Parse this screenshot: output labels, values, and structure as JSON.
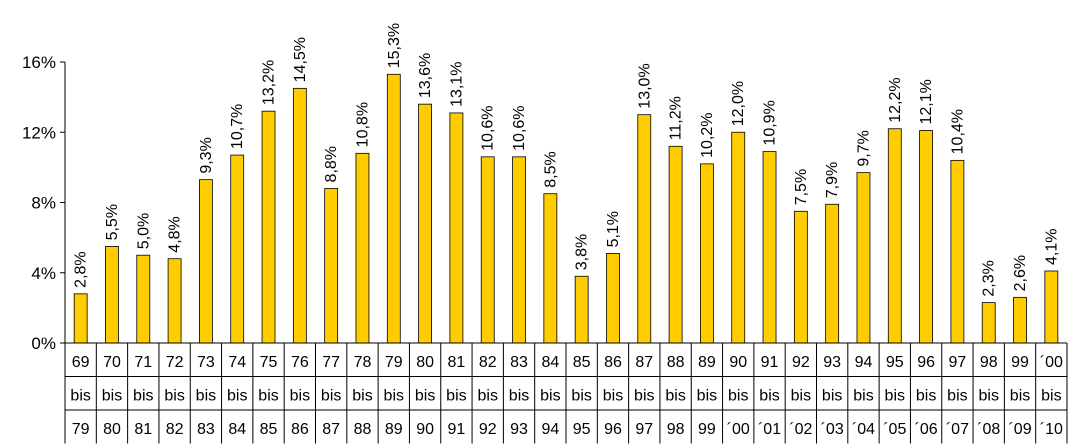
{
  "chart_data": {
    "type": "bar",
    "title": "",
    "xlabel": "",
    "ylabel": "",
    "ylim": [
      0,
      16
    ],
    "yticks": [
      0,
      4,
      8,
      12,
      16
    ],
    "ytick_labels": [
      "0%",
      "4%",
      "8%",
      "12%",
      "16%"
    ],
    "grid": false,
    "bar_color": "#FFCC00",
    "bar_outline": "#000000",
    "categories": [
      [
        "69",
        "bis",
        "79"
      ],
      [
        "70",
        "bis",
        "80"
      ],
      [
        "71",
        "bis",
        "81"
      ],
      [
        "72",
        "bis",
        "82"
      ],
      [
        "73",
        "bis",
        "83"
      ],
      [
        "74",
        "bis",
        "84"
      ],
      [
        "75",
        "bis",
        "85"
      ],
      [
        "76",
        "bis",
        "86"
      ],
      [
        "77",
        "bis",
        "87"
      ],
      [
        "78",
        "bis",
        "88"
      ],
      [
        "79",
        "bis",
        "89"
      ],
      [
        "80",
        "bis",
        "90"
      ],
      [
        "81",
        "bis",
        "91"
      ],
      [
        "82",
        "bis",
        "92"
      ],
      [
        "83",
        "bis",
        "93"
      ],
      [
        "84",
        "bis",
        "94"
      ],
      [
        "85",
        "bis",
        "95"
      ],
      [
        "86",
        "bis",
        "96"
      ],
      [
        "87",
        "bis",
        "97"
      ],
      [
        "88",
        "bis",
        "98"
      ],
      [
        "89",
        "bis",
        "99"
      ],
      [
        "90",
        "bis",
        "´00"
      ],
      [
        "91",
        "bis",
        "´01"
      ],
      [
        "92",
        "bis",
        "´02"
      ],
      [
        "93",
        "bis",
        "´03"
      ],
      [
        "94",
        "bis",
        "´04"
      ],
      [
        "95",
        "bis",
        "´05"
      ],
      [
        "96",
        "bis",
        "´06"
      ],
      [
        "97",
        "bis",
        "´07"
      ],
      [
        "98",
        "bis",
        "´08"
      ],
      [
        "99",
        "bis",
        "´09"
      ],
      [
        "´00",
        "bis",
        "´10"
      ]
    ],
    "values": [
      2.8,
      5.5,
      5.0,
      4.8,
      9.3,
      10.7,
      13.2,
      14.5,
      8.8,
      10.8,
      15.3,
      13.6,
      13.1,
      10.6,
      10.6,
      8.5,
      3.8,
      5.1,
      13.0,
      11.2,
      10.2,
      12.0,
      10.9,
      7.5,
      7.9,
      9.7,
      12.2,
      12.1,
      10.4,
      2.3,
      2.6,
      4.1
    ],
    "data_labels": [
      "2,8%",
      "5,5%",
      "5,0%",
      "4,8%",
      "9,3%",
      "10,7%",
      "13,2%",
      "14,5%",
      "8,8%",
      "10,8%",
      "15,3%",
      "13,6%",
      "13,1%",
      "10,6%",
      "10,6%",
      "8,5%",
      "3,8%",
      "5,1%",
      "13,0%",
      "11,2%",
      "10,2%",
      "12,0%",
      "10,9%",
      "7,5%",
      "7,9%",
      "9,7%",
      "12,2%",
      "12,1%",
      "10,4%",
      "2,3%",
      "2,6%",
      "4,1%"
    ]
  }
}
